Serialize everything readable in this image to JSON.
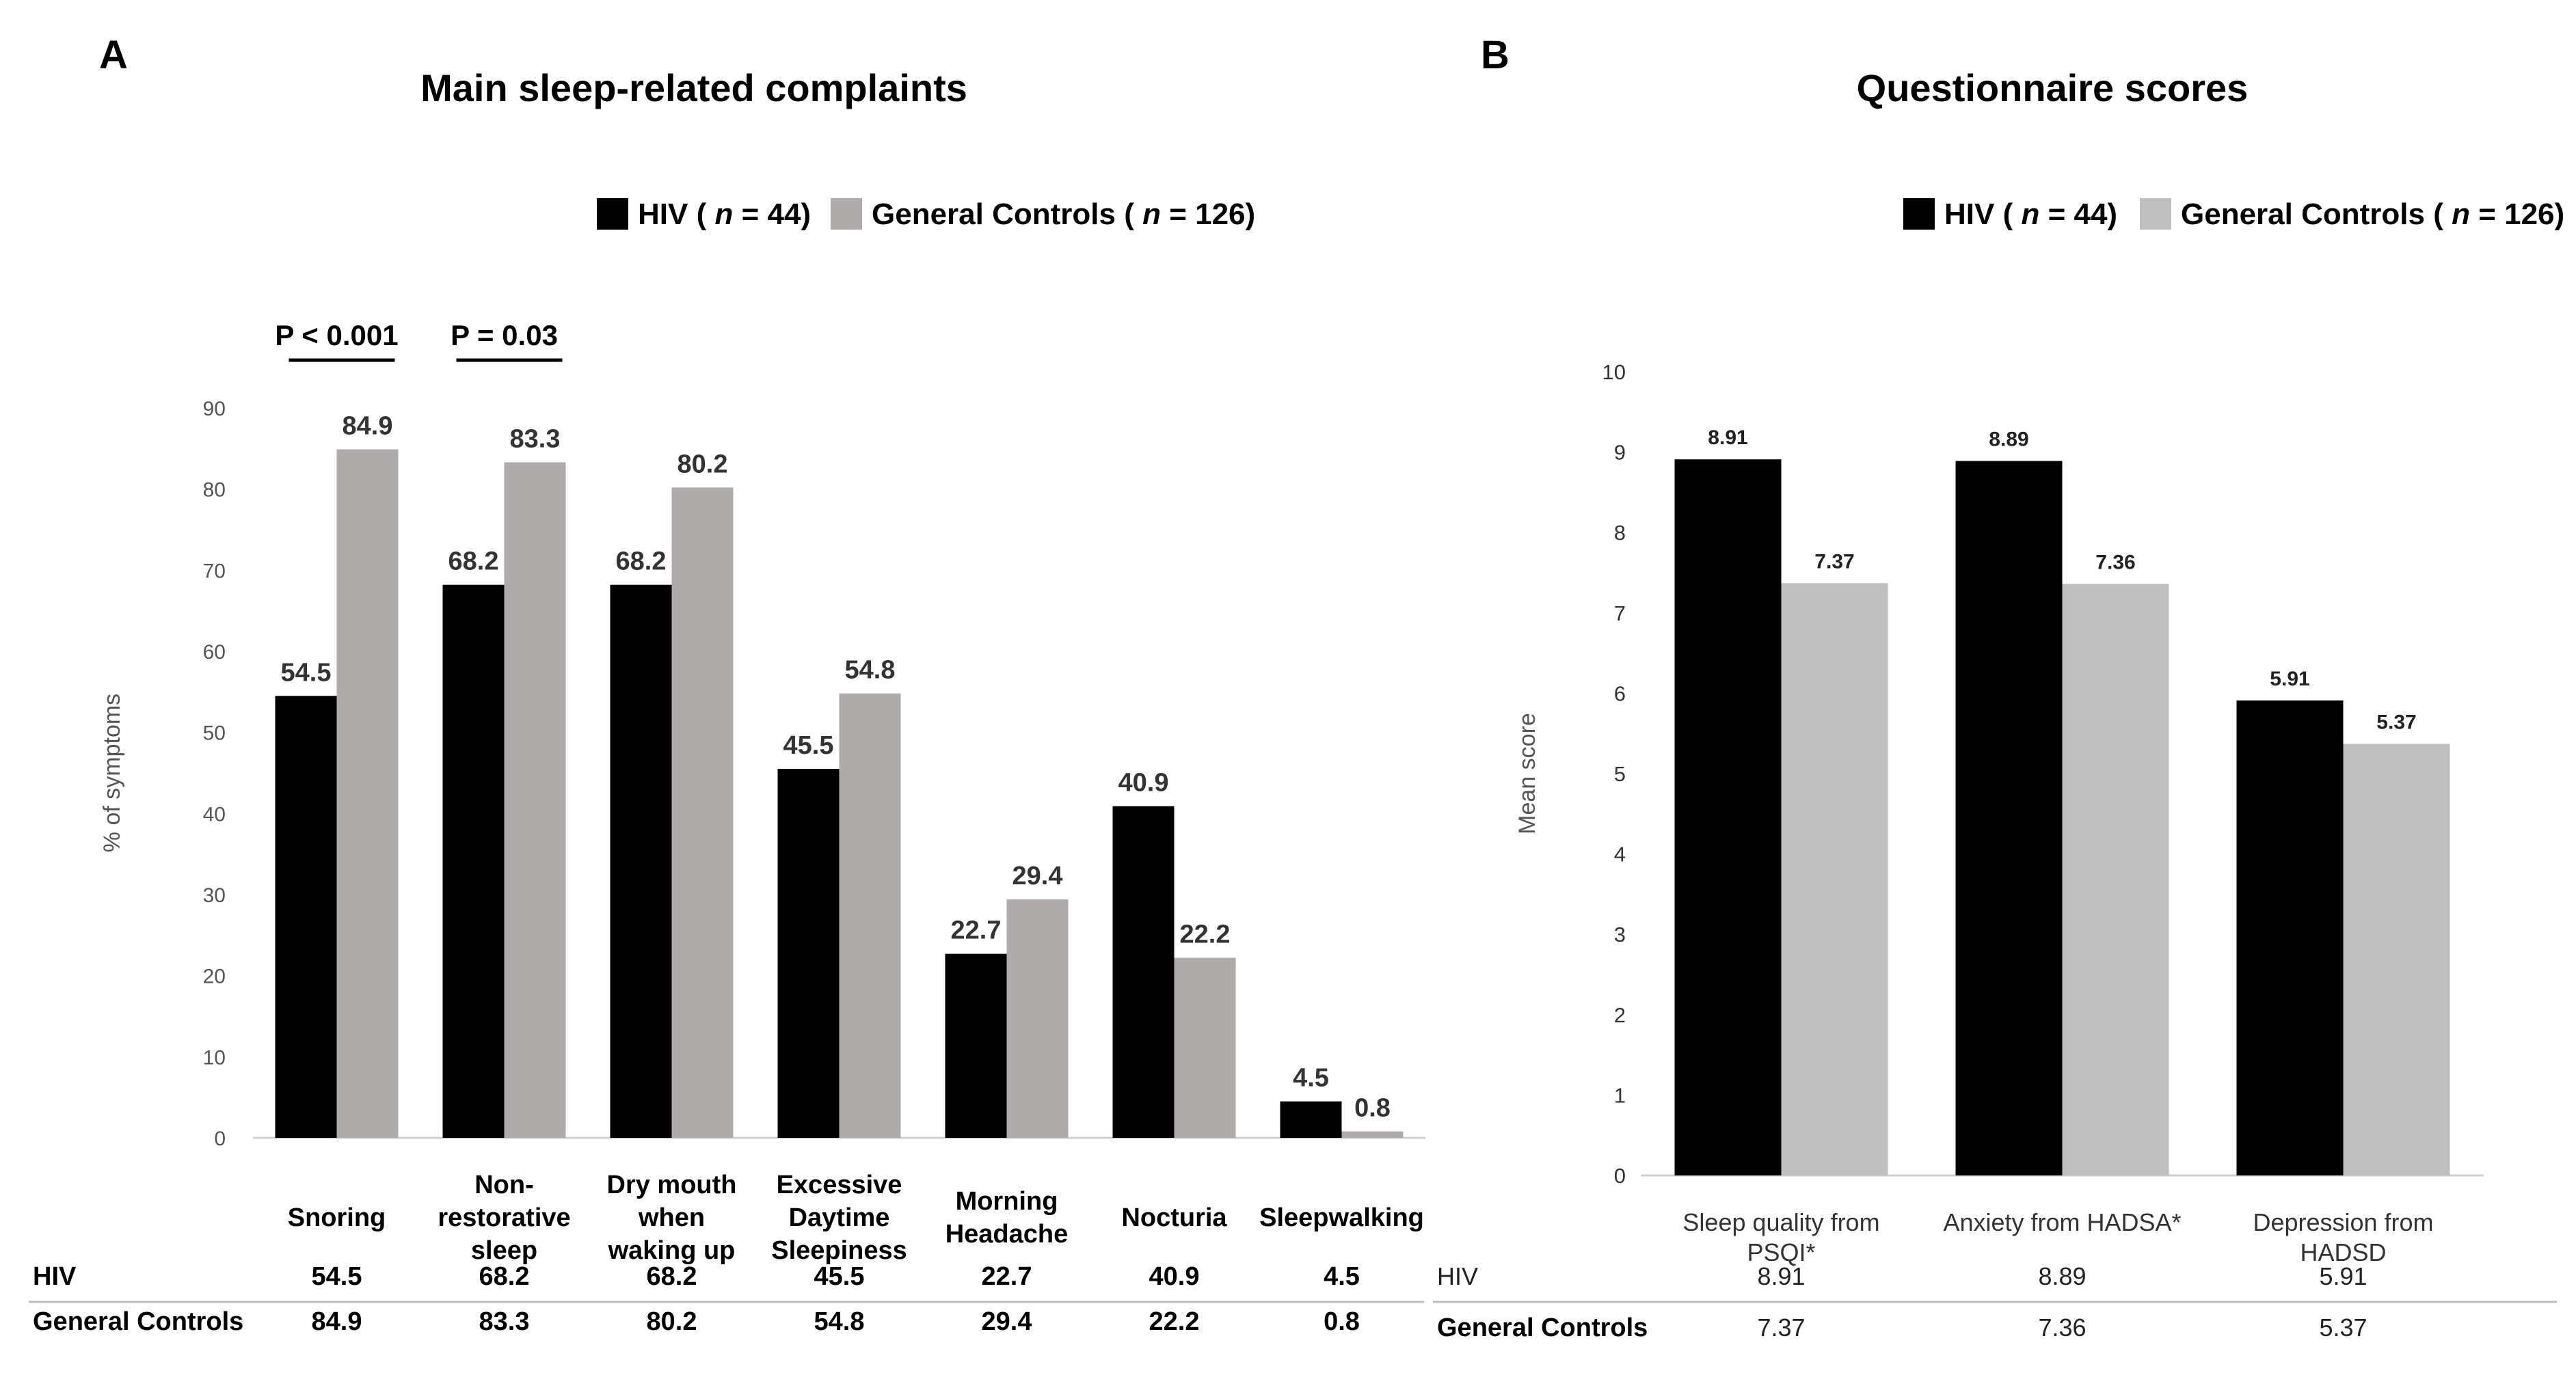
{
  "chart_data": [
    {
      "panel": "A",
      "type": "bar",
      "title": "Main sleep-related complaints",
      "ylabel": "% of symptoms",
      "xlabel": "",
      "ylim": [
        0,
        90
      ],
      "yticks": [
        0,
        10,
        20,
        30,
        40,
        50,
        60,
        70,
        80,
        90
      ],
      "categories": [
        [
          "Snoring"
        ],
        [
          "Non-",
          "restorative",
          "sleep"
        ],
        [
          "Dry mouth",
          "when",
          "waking up"
        ],
        [
          "Excessive",
          "Daytime",
          "Sleepiness"
        ],
        [
          "Morning",
          "Headache"
        ],
        [
          "Nocturia"
        ],
        [
          "Sleepwalking"
        ]
      ],
      "series": [
        {
          "name": "HIV",
          "n": "44",
          "color": "#000000",
          "values": [
            54.5,
            68.2,
            68.2,
            45.5,
            22.7,
            40.9,
            4.5
          ],
          "labels": [
            "54.5",
            "68.2",
            "68.2",
            "45.5",
            "22.7",
            "40.9",
            "4.5"
          ]
        },
        {
          "name": "General Controls",
          "n": "126",
          "color": "#afabab",
          "values": [
            84.9,
            83.3,
            80.2,
            54.8,
            29.4,
            22.2,
            0.8
          ],
          "labels": [
            "84.9",
            "83.3",
            "80.2",
            "54.8",
            "29.4",
            "22.2",
            "0.8"
          ]
        }
      ],
      "annotations": [
        {
          "text": "P < 0.001",
          "category_index": 0
        },
        {
          "text": "P = 0.03",
          "category_index": 1
        }
      ],
      "table": [
        {
          "label": "HIV",
          "values": [
            "54.5",
            "68.2",
            "68.2",
            "45.5",
            "22.7",
            "40.9",
            "4.5"
          ]
        },
        {
          "label": "General Controls",
          "values": [
            "84.9",
            "83.3",
            "80.2",
            "54.8",
            "29.4",
            "22.2",
            "0.8"
          ]
        }
      ],
      "legend_position": "top-center"
    },
    {
      "panel": "B",
      "type": "bar",
      "title": "Questionnaire scores",
      "ylabel": "Mean score",
      "xlabel": "",
      "ylim": [
        0,
        10
      ],
      "yticks": [
        0,
        1,
        2,
        3,
        4,
        5,
        6,
        7,
        8,
        9,
        10
      ],
      "categories": [
        [
          "Sleep quality from",
          "PSQI*"
        ],
        [
          "Anxiety from HADSA*"
        ],
        [
          "Depression from",
          "HADSD"
        ]
      ],
      "series": [
        {
          "name": "HIV",
          "n": "44",
          "color": "#000000",
          "values": [
            8.91,
            8.89,
            5.91
          ],
          "labels": [
            "8.91",
            "8.89",
            "5.91"
          ]
        },
        {
          "name": "General Controls",
          "n": "126",
          "color": "#bfbfbf",
          "values": [
            7.37,
            7.36,
            5.37
          ],
          "labels": [
            "7.37",
            "7.36",
            "5.37"
          ]
        }
      ],
      "annotations": [],
      "table": [
        {
          "label": "HIV",
          "values": [
            "8.91",
            "8.89",
            "5.91"
          ]
        },
        {
          "label": "General Controls",
          "values": [
            "7.37",
            "7.36",
            "5.37"
          ]
        }
      ],
      "legend_position": "top-right"
    }
  ]
}
